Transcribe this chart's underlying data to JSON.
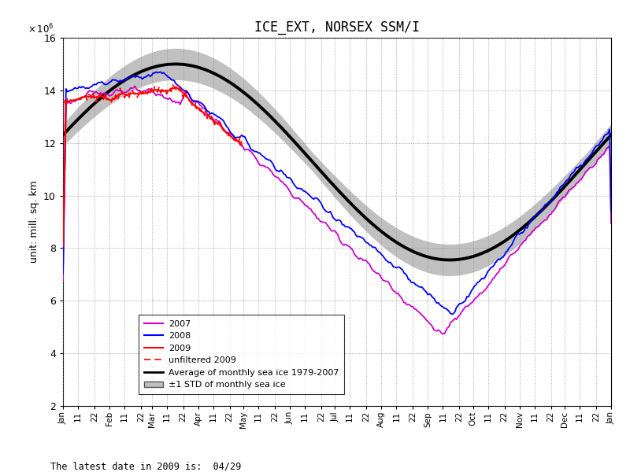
{
  "title": "ICE_EXT, NORSEX SSM/I",
  "ylabel": "unit: mill. sq. km",
  "footer": "The latest date in 2009 is:  04/29",
  "ylim": [
    2,
    16
  ],
  "yticks": [
    2,
    4,
    6,
    8,
    10,
    12,
    14,
    16
  ],
  "colors": {
    "2007": "#CC00CC",
    "2008": "#0000FF",
    "2009": "#FF0000",
    "unfiltered2009": "#FF0000",
    "average": "#000000",
    "std_fill": "#C0C0C0"
  },
  "background": "#FFFFFF",
  "avg_peak_day": 75,
  "avg_min_day": 258,
  "avg_peak_val": 15.0,
  "avg_min_val": 7.55,
  "std_base": 0.35,
  "std_vary": 0.25
}
